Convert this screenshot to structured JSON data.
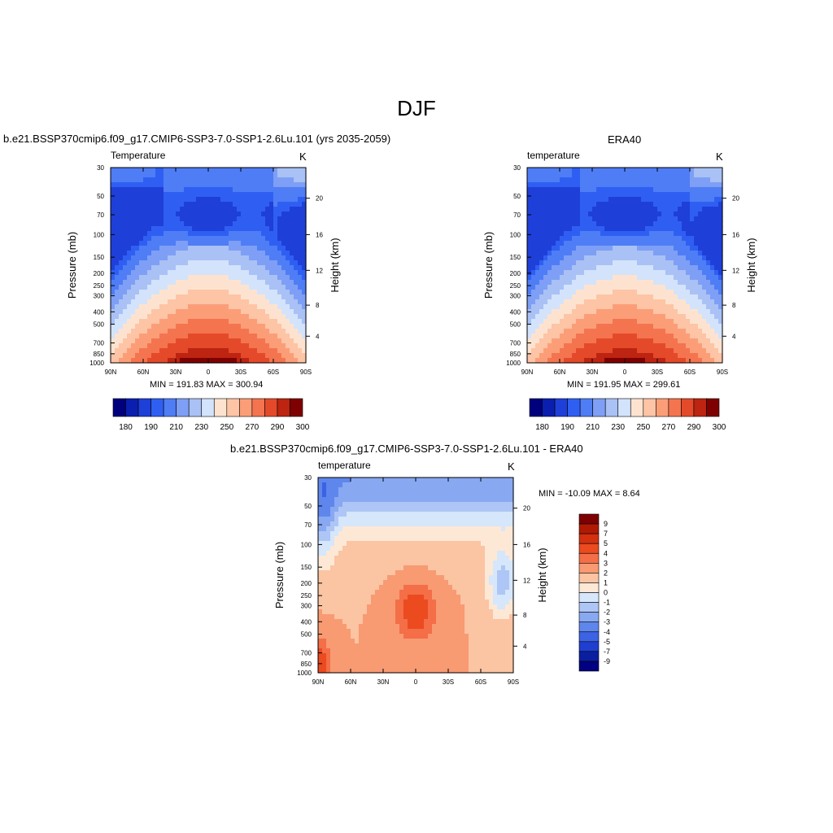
{
  "title": "DJF",
  "panels": [
    {
      "title": "b.e21.BSSP370cmip6.f09_g17.CMIP6-SSP3-7.0-SSP1-2.6Lu.101 (yrs 2035-2059)",
      "var_label": "Temperature",
      "units": "K",
      "minmax": "MIN = 191.83  MAX = 300.94"
    },
    {
      "title": "ERA40",
      "var_label": "temperature",
      "units": "K",
      "minmax": "MIN = 191.95  MAX = 299.61"
    },
    {
      "title": "b.e21.BSSP370cmip6.f09_g17.CMIP6-SSP3-7.0-SSP1-2.6Lu.101 - ERA40",
      "var_label": "temperature",
      "units": "K",
      "minmax": "MIN = -10.09  MAX =   8.64"
    }
  ],
  "axes": {
    "ylabel": "Pressure (mb)",
    "y2label": "Height (km)"
  },
  "chart_data": [
    {
      "type": "heatmap",
      "name": "model",
      "x_ticks": [
        "90N",
        "60N",
        "30N",
        "0",
        "30S",
        "60S",
        "90S"
      ],
      "y_ticks": [
        "30",
        "50",
        "70",
        "100",
        "150",
        "200",
        "250",
        "300",
        "400",
        "500",
        "700",
        "850",
        "1000"
      ],
      "y2_ticks": [
        "20",
        "16",
        "12",
        "8",
        "4"
      ],
      "colorbar_labels": [
        "180",
        "190",
        "210",
        "230",
        "250",
        "270",
        "290",
        "300"
      ],
      "min": 191.83,
      "max": 300.94
    },
    {
      "type": "heatmap",
      "name": "obs",
      "x_ticks": [
        "90N",
        "60N",
        "30N",
        "0",
        "30S",
        "60S",
        "90S"
      ],
      "y_ticks": [
        "30",
        "50",
        "70",
        "100",
        "150",
        "200",
        "250",
        "300",
        "400",
        "500",
        "700",
        "850",
        "1000"
      ],
      "y2_ticks": [
        "20",
        "16",
        "12",
        "8",
        "4"
      ],
      "colorbar_labels": [
        "180",
        "190",
        "210",
        "230",
        "250",
        "270",
        "290",
        "300"
      ],
      "min": 191.95,
      "max": 299.61
    },
    {
      "type": "heatmap",
      "name": "difference",
      "x_ticks": [
        "90N",
        "60N",
        "30N",
        "0",
        "30S",
        "60S",
        "90S"
      ],
      "y_ticks": [
        "30",
        "50",
        "70",
        "100",
        "150",
        "200",
        "250",
        "300",
        "400",
        "500",
        "700",
        "850",
        "1000"
      ],
      "y2_ticks": [
        "20",
        "16",
        "12",
        "8",
        "4"
      ],
      "colorbar_labels": [
        "9",
        "7",
        "5",
        "4",
        "3",
        "2",
        "1",
        "0",
        "-1",
        "-2",
        "-3",
        "-4",
        "-5",
        "-7",
        "-9"
      ],
      "min": -10.09,
      "max": 8.64
    }
  ],
  "colors": {
    "abs_scale": [
      "#00007f",
      "#0a1fb0",
      "#1f3fd9",
      "#2f5ff2",
      "#4f7df5",
      "#7e9ff5",
      "#a9c1f5",
      "#d3e3fb",
      "#fde3cf",
      "#fdc4a5",
      "#fb9e78",
      "#f4744f",
      "#e44a2a",
      "#bd2411",
      "#7f0000"
    ],
    "diff_scale": [
      "#7f0000",
      "#b01a05",
      "#d4300f",
      "#ec4a1f",
      "#f46e47",
      "#f89a72",
      "#fbc4a2",
      "#fde8d6",
      "#d6e6fb",
      "#aec6f5",
      "#88a8f2",
      "#5f86ec",
      "#3b63e4",
      "#1f3fd0",
      "#0a1fa0",
      "#000080"
    ]
  }
}
